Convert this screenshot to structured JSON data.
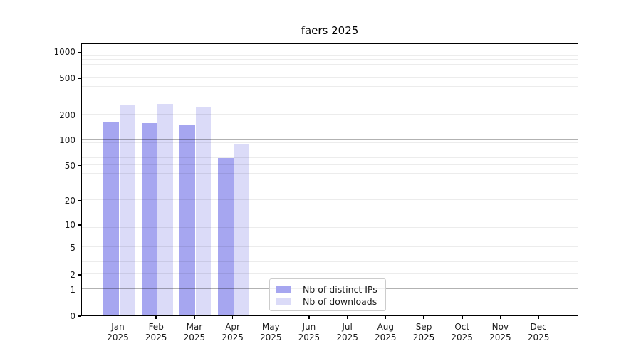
{
  "title": "faers 2025",
  "legend": {
    "items": [
      {
        "label": "Nb of distinct IPs",
        "color": "#a6a6f0"
      },
      {
        "label": "Nb of downloads",
        "color": "#dbdbf8"
      }
    ]
  },
  "chart_data": {
    "type": "bar",
    "title": "faers 2025",
    "categories": [
      "Jan 2025",
      "Feb 2025",
      "Mar 2025",
      "Apr 2025",
      "May 2025",
      "Jun 2025",
      "Jul 2025",
      "Aug 2025",
      "Sep 2025",
      "Oct 2025",
      "Nov 2025",
      "Dec 2025"
    ],
    "series": [
      {
        "name": "Nb of distinct IPs",
        "color": "#a6a6f0",
        "values": [
          160,
          158,
          147,
          60,
          0,
          0,
          0,
          0,
          0,
          0,
          0,
          0
        ]
      },
      {
        "name": "Nb of downloads",
        "color": "#dbdbf8",
        "values": [
          255,
          258,
          240,
          88,
          0,
          0,
          0,
          0,
          0,
          0,
          0,
          0
        ]
      }
    ],
    "xlabel": "",
    "ylabel": "",
    "yscale": "symlog",
    "yticks": [
      0,
      1,
      2,
      5,
      10,
      20,
      50,
      100,
      200,
      500,
      1000
    ],
    "ylim": [
      0,
      1150
    ],
    "grid": "both",
    "grid_major_values": [
      1,
      10,
      100,
      1000
    ],
    "grid_minor_values": [
      2,
      3,
      4,
      5,
      6,
      7,
      8,
      9,
      20,
      30,
      40,
      50,
      60,
      70,
      80,
      90,
      200,
      300,
      400,
      500,
      600,
      700,
      800,
      900
    ],
    "scale_anchors": [
      [
        0,
        0
      ],
      [
        1,
        0.0958
      ],
      [
        2,
        0.1522
      ],
      [
        5,
        0.2499
      ],
      [
        10,
        0.3342
      ],
      [
        20,
        0.4238
      ],
      [
        50,
        0.5517
      ],
      [
        100,
        0.6457
      ],
      [
        200,
        0.7371
      ],
      [
        500,
        0.8721
      ],
      [
        1000,
        0.9679
      ]
    ],
    "legend_position": "lower center-left"
  }
}
